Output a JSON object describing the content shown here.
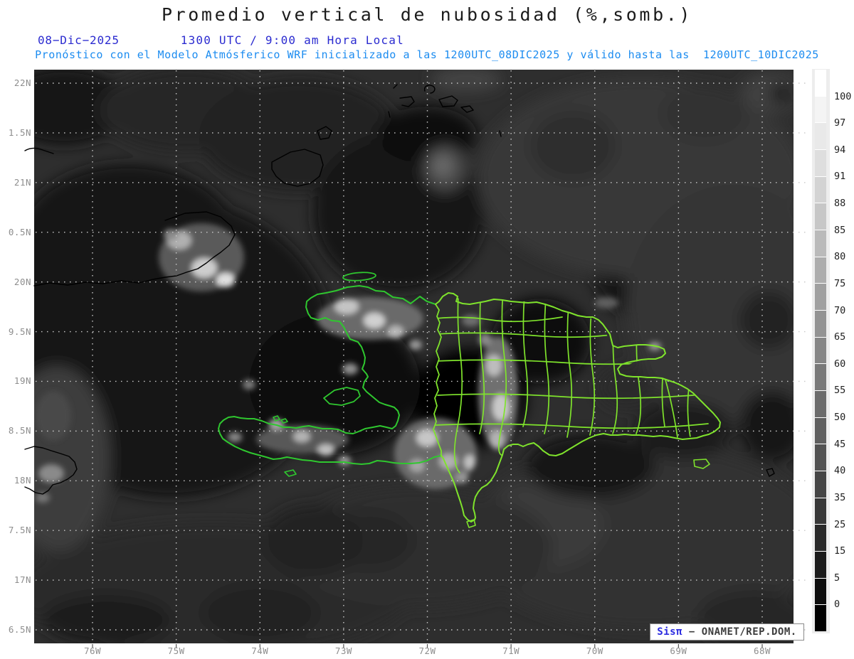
{
  "header": {
    "title": "Promedio vertical de nubosidad (%,somb.)",
    "date": "08−Dic−2025",
    "time": "1300 UTC / 9:00 am Hora Local",
    "model_line": "Pronóstico con el Modelo Atmósferico WRF inicializado a las 1200UTC_08DIC2025 y válido hasta las  1200UTC_10DIC2025"
  },
  "axes": {
    "lat_labels": [
      "22N",
      "1.5N",
      "21N",
      "0.5N",
      "20N",
      "9.5N",
      "19N",
      "8.5N",
      "18N",
      "7.5N",
      "17N",
      "6.5N"
    ],
    "lon_labels": [
      "76W",
      "75W",
      "74W",
      "73W",
      "72W",
      "71W",
      "70W",
      "69W",
      "68W"
    ]
  },
  "colorbar": {
    "labels": [
      "100",
      "97",
      "94",
      "91",
      "88",
      "85",
      "80",
      "75",
      "70",
      "65",
      "60",
      "55",
      "50",
      "45",
      "40",
      "35",
      "25",
      "15",
      "5",
      "0"
    ],
    "colors": [
      "#ffffff",
      "#f4f4f4",
      "#e9e9e9",
      "#dedede",
      "#d3d3d3",
      "#c7c7c7",
      "#bababa",
      "#adadad",
      "#a0a0a0",
      "#939393",
      "#868686",
      "#797979",
      "#6c6c6c",
      "#5f5f5f",
      "#525252",
      "#454545",
      "#373737",
      "#292929",
      "#1b1b1b",
      "#0d0d0d",
      "#000000"
    ]
  },
  "footer": {
    "brand": "Sisπ",
    "credit": "− ONAMET/REP.DOM."
  },
  "colors": {
    "title": "#1b1b1b",
    "datetime": "#2b2bd0",
    "model_line": "#1c8cf0",
    "axis_labels": "#8e8e8e",
    "colorbar_labels": "#1f1f1f",
    "grid": "#c9c9c9",
    "coastline": "#000000",
    "haiti_coast_green": "#2fc72f",
    "dr_border_green": "#7fe32c",
    "watermark_brand": "#2b2be0",
    "watermark_credit": "#3c3c3c",
    "ocean_base": "#2e2e2e"
  }
}
